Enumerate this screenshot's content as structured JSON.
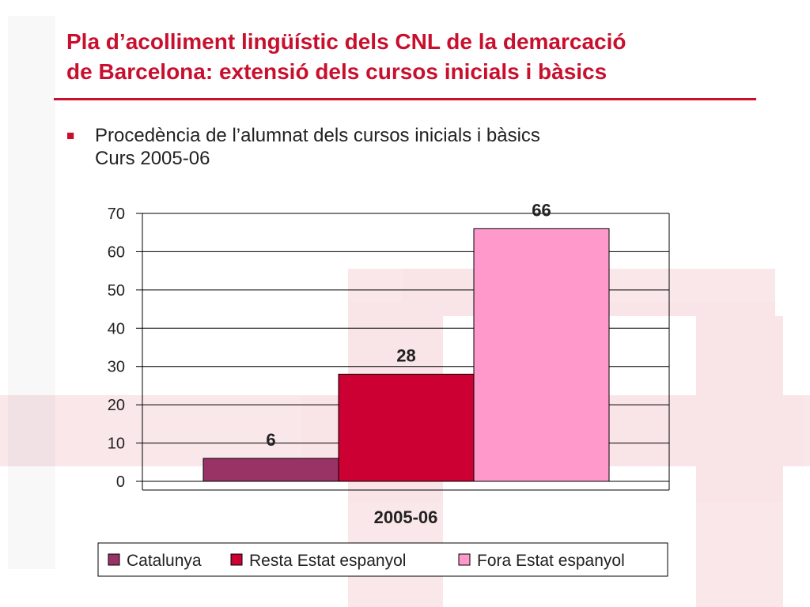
{
  "slide": {
    "title_line1": "Pla d’acolliment lingüístic dels CNL de la demarcació",
    "title_line2": "de Barcelona: extensió dels cursos inicials i bàsics",
    "bullet_line1": "Procedència de l’alumnat dels cursos inicials i bàsics",
    "bullet_line2": "Curs 2005-06"
  },
  "chart_data": {
    "type": "bar",
    "categories": [
      "2005-06"
    ],
    "series": [
      {
        "name": "Catalunya",
        "values": [
          6
        ],
        "color": "#993366"
      },
      {
        "name": "Resta Estat espanyol",
        "values": [
          28
        ],
        "color": "#cc0033"
      },
      {
        "name": "Fora Estat espanyol",
        "values": [
          66
        ],
        "color": "#ff99cc"
      }
    ],
    "ylim": [
      0,
      70
    ],
    "yticks": [
      0,
      10,
      20,
      30,
      40,
      50,
      60,
      70
    ],
    "grid": true,
    "legend": "bottom"
  }
}
